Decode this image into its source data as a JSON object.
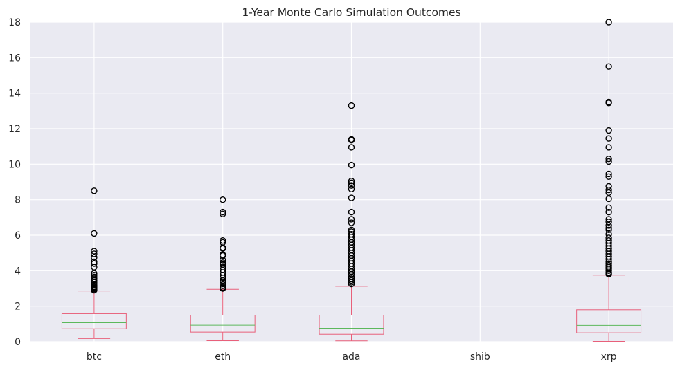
{
  "chart_data": {
    "type": "box",
    "title": "1-Year Monte Carlo Simulation Outcomes",
    "xlabel": "",
    "ylabel": "",
    "ylim": [
      0,
      18
    ],
    "yticks": [
      0,
      2,
      4,
      6,
      8,
      10,
      12,
      14,
      16,
      18
    ],
    "categories": [
      "btc",
      "eth",
      "ada",
      "shib",
      "xrp"
    ],
    "grid": true,
    "colors": {
      "background": "#eaeaf2",
      "grid": "#ffffff",
      "box": "#e8607a",
      "median": "#5cb85c",
      "flier": "#000000"
    },
    "boxes": [
      {
        "name": "btc",
        "whisker_low": 0.18,
        "q1": 0.73,
        "median": 1.07,
        "q3": 1.58,
        "whisker_high": 2.86,
        "fliers": [
          8.5,
          6.1,
          5.1,
          4.95,
          4.75,
          4.5,
          4.4,
          4.2,
          3.85,
          3.75,
          3.65,
          3.55,
          3.45,
          3.35,
          3.25,
          3.18,
          3.1,
          3.05,
          3.0,
          2.95,
          2.9
        ]
      },
      {
        "name": "eth",
        "whisker_low": 0.06,
        "q1": 0.54,
        "median": 0.93,
        "q3": 1.5,
        "whisker_high": 2.95,
        "fliers": [
          8.0,
          7.3,
          7.2,
          5.7,
          5.6,
          5.3,
          5.25,
          4.9,
          4.85,
          4.6,
          4.45,
          4.35,
          4.2,
          4.05,
          3.9,
          3.75,
          3.6,
          3.45,
          3.35,
          3.25,
          3.15,
          3.05,
          3.0
        ]
      },
      {
        "name": "ada",
        "whisker_low": 0.05,
        "q1": 0.42,
        "median": 0.76,
        "q3": 1.5,
        "whisker_high": 3.12,
        "fliers": [
          13.3,
          11.4,
          11.35,
          10.95,
          9.95,
          9.05,
          8.95,
          8.8,
          8.6,
          8.1,
          7.3,
          6.9,
          6.7,
          6.3,
          6.2,
          6.05,
          5.9,
          5.75,
          5.6,
          5.45,
          5.3,
          5.15,
          5.0,
          4.85,
          4.7,
          4.55,
          4.4,
          4.25,
          4.1,
          3.95,
          3.8,
          3.65,
          3.55,
          3.45,
          3.35,
          3.25
        ]
      },
      {
        "name": "shib",
        "empty": true
      },
      {
        "name": "xrp",
        "whisker_low": 0.02,
        "q1": 0.5,
        "median": 0.92,
        "q3": 1.8,
        "whisker_high": 3.75,
        "fliers": [
          18.0,
          15.5,
          13.5,
          13.45,
          11.9,
          11.45,
          10.95,
          10.3,
          10.15,
          9.45,
          9.3,
          8.75,
          8.55,
          8.4,
          8.05,
          7.55,
          7.3,
          6.9,
          6.75,
          6.55,
          6.4,
          6.3,
          6.05,
          5.85,
          5.7,
          5.55,
          5.4,
          5.25,
          5.1,
          4.95,
          4.8,
          4.65,
          4.5,
          4.4,
          4.3,
          4.2,
          4.1,
          4.0,
          3.9,
          3.85,
          3.8
        ]
      }
    ]
  }
}
